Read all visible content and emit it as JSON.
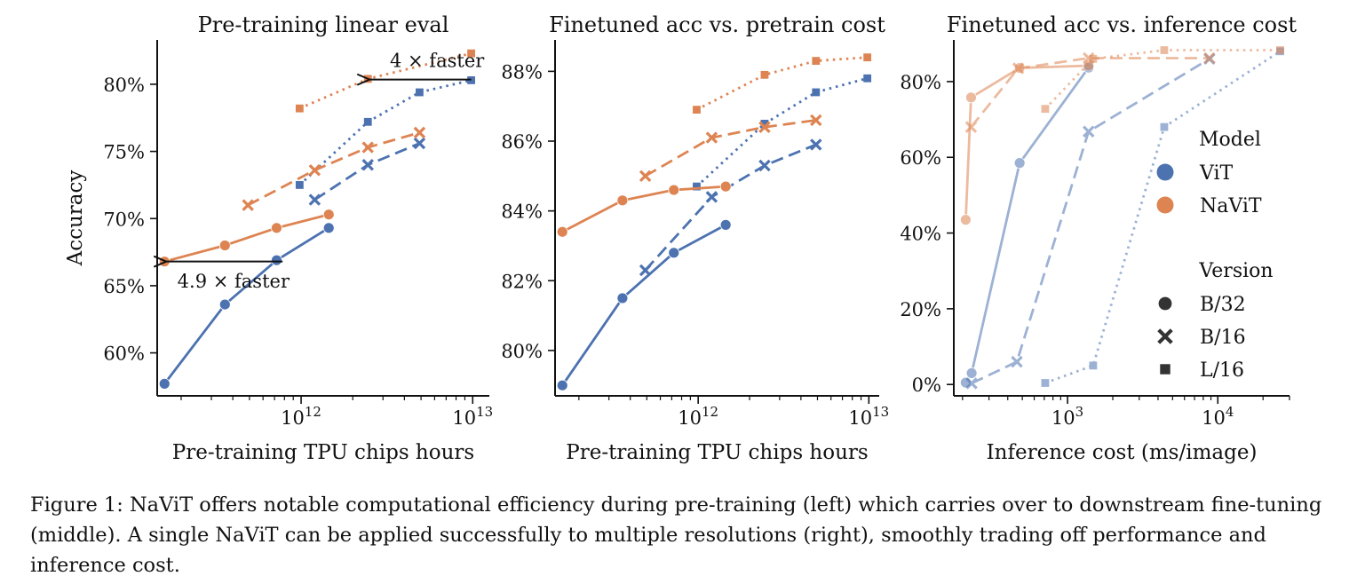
{
  "colors": {
    "vit": "#4c72b0",
    "navit": "#dd8452",
    "axis": "#111111"
  },
  "legend": {
    "model_title": "Model",
    "models": [
      {
        "label": "ViT",
        "color": "#4c72b0"
      },
      {
        "label": "NaViT",
        "color": "#dd8452"
      }
    ],
    "version_title": "Version",
    "versions": [
      {
        "label": "B/32",
        "marker": "circle"
      },
      {
        "label": "B/16",
        "marker": "x"
      },
      {
        "label": "L/16",
        "marker": "square"
      }
    ]
  },
  "caption": {
    "label": "Figure 1:",
    "text": " NaViT offers notable computational efficiency during pre-training (left) which carries over to downstream fine-tuning (middle). A single NaViT can be applied successfully to multiple resolutions (right), smoothly trading off performance and inference cost."
  },
  "chart_data": [
    {
      "type": "line",
      "title": "Pre-training linear eval",
      "xlabel": "Pre-training TPU chips hours",
      "ylabel": "Accuracy",
      "xscale": "log",
      "xlim": [
        145000000000.0,
        12500000000000.0
      ],
      "ylim": [
        56.8,
        83.3
      ],
      "xticks": [
        {
          "value": 1000000000000.0,
          "base": "10",
          "exp": "12"
        },
        {
          "value": 10000000000000.0,
          "base": "10",
          "exp": "13"
        }
      ],
      "yticks": [
        {
          "value": 60,
          "label": "60%"
        },
        {
          "value": 65,
          "label": "65%"
        },
        {
          "value": 70,
          "label": "70%"
        },
        {
          "value": 75,
          "label": "75%"
        },
        {
          "value": 80,
          "label": "80%"
        }
      ],
      "series": [
        {
          "model": "ViT",
          "version": "B/32",
          "x": [
            160000000000.0,
            360000000000.0,
            720000000000.0,
            1450000000000.0
          ],
          "y": [
            57.7,
            63.6,
            66.9,
            69.3
          ]
        },
        {
          "model": "ViT",
          "version": "B/16",
          "x": [
            1200000000000.0,
            2450000000000.0,
            4900000000000.0
          ],
          "y": [
            71.4,
            74.0,
            75.6
          ]
        },
        {
          "model": "ViT",
          "version": "L/16",
          "x": [
            980000000000.0,
            2450000000000.0,
            4900000000000.0,
            9800000000000.0
          ],
          "y": [
            72.5,
            77.2,
            79.4,
            80.3
          ]
        },
        {
          "model": "NaViT",
          "version": "B/32",
          "x": [
            160000000000.0,
            360000000000.0,
            720000000000.0,
            1450000000000.0
          ],
          "y": [
            66.8,
            68.0,
            69.3,
            70.3
          ]
        },
        {
          "model": "NaViT",
          "version": "B/16",
          "x": [
            490000000000.0,
            1200000000000.0,
            2450000000000.0,
            4900000000000.0
          ],
          "y": [
            71.0,
            73.6,
            75.3,
            76.4
          ]
        },
        {
          "model": "NaViT",
          "version": "L/16",
          "x": [
            980000000000.0,
            2450000000000.0,
            9800000000000.0
          ],
          "y": [
            78.2,
            80.4,
            82.3
          ]
        }
      ],
      "annotations": [
        {
          "text": "4 × faster",
          "from": [
            9800000000000.0,
            80.35
          ],
          "to": [
            2450000000000.0,
            80.35
          ],
          "text_anchor": [
            6200000000000.0,
            81.8
          ],
          "align": "middle"
        },
        {
          "text": "4.9 × faster",
          "from": [
            780000000000.0,
            66.8
          ],
          "to": [
            160000000000.0,
            66.8
          ],
          "text_anchor": [
            190000000000.0,
            65.4
          ],
          "align": "start"
        }
      ]
    },
    {
      "type": "line",
      "title": "Finetuned acc vs. pretrain cost",
      "xlabel": "Pre-training TPU chips hours",
      "ylabel": "",
      "xscale": "log",
      "xlim": [
        145000000000.0,
        11500000000000.0
      ],
      "ylim": [
        78.7,
        88.9
      ],
      "xticks": [
        {
          "value": 1000000000000.0,
          "base": "10",
          "exp": "12"
        },
        {
          "value": 10000000000000.0,
          "base": "10",
          "exp": "13"
        }
      ],
      "yticks": [
        {
          "value": 80,
          "label": "80%"
        },
        {
          "value": 82,
          "label": "82%"
        },
        {
          "value": 84,
          "label": "84%"
        },
        {
          "value": 86,
          "label": "86%"
        },
        {
          "value": 88,
          "label": "88%"
        }
      ],
      "series": [
        {
          "model": "ViT",
          "version": "B/32",
          "x": [
            160000000000.0,
            360000000000.0,
            720000000000.0,
            1450000000000.0
          ],
          "y": [
            79.0,
            81.5,
            82.8,
            83.6
          ]
        },
        {
          "model": "ViT",
          "version": "B/16",
          "x": [
            490000000000.0,
            1200000000000.0,
            2450000000000.0,
            4900000000000.0
          ],
          "y": [
            82.3,
            84.4,
            85.3,
            85.9
          ]
        },
        {
          "model": "ViT",
          "version": "L/16",
          "x": [
            980000000000.0,
            2450000000000.0,
            4900000000000.0,
            9800000000000.0
          ],
          "y": [
            84.7,
            86.5,
            87.4,
            87.8
          ]
        },
        {
          "model": "NaViT",
          "version": "B/32",
          "x": [
            160000000000.0,
            360000000000.0,
            720000000000.0,
            1450000000000.0
          ],
          "y": [
            83.4,
            84.3,
            84.6,
            84.7
          ]
        },
        {
          "model": "NaViT",
          "version": "B/16",
          "x": [
            490000000000.0,
            1200000000000.0,
            2450000000000.0,
            4900000000000.0
          ],
          "y": [
            85.0,
            86.1,
            86.4,
            86.6
          ]
        },
        {
          "model": "NaViT",
          "version": "L/16",
          "x": [
            980000000000.0,
            2450000000000.0,
            4900000000000.0,
            9800000000000.0
          ],
          "y": [
            86.9,
            87.9,
            88.3,
            88.4
          ]
        }
      ],
      "annotations": []
    },
    {
      "type": "line",
      "title": "Finetuned acc vs. inference cost",
      "xlabel": "Inference cost (ms/image)",
      "ylabel": "",
      "xscale": "log",
      "xlim": [
        175,
        30000
      ],
      "ylim": [
        -3,
        91
      ],
      "xticks": [
        {
          "value": 1000,
          "base": "10",
          "exp": "3"
        },
        {
          "value": 10000,
          "base": "10",
          "exp": "4"
        }
      ],
      "yticks": [
        {
          "value": 0,
          "label": "0%"
        },
        {
          "value": 20,
          "label": "20%"
        },
        {
          "value": 40,
          "label": "40%"
        },
        {
          "value": 60,
          "label": "60%"
        },
        {
          "value": 80,
          "label": "80%"
        }
      ],
      "series": [
        {
          "model": "ViT",
          "version": "B/32",
          "x": [
            210,
            230,
            480,
            1380
          ],
          "y": [
            0.5,
            3.0,
            58.5,
            83.7
          ],
          "faded": true
        },
        {
          "model": "ViT",
          "version": "B/16",
          "x": [
            230,
            460,
            1380,
            8800
          ],
          "y": [
            0.3,
            6.0,
            66.8,
            86.0
          ],
          "faded": true
        },
        {
          "model": "ViT",
          "version": "L/16",
          "x": [
            710,
            1480,
            4400,
            26000
          ],
          "y": [
            0.4,
            5.0,
            68.0,
            88.0
          ],
          "faded": true
        },
        {
          "model": "NaViT",
          "version": "B/32",
          "x": [
            210,
            228,
            480,
            1380
          ],
          "y": [
            43.5,
            75.8,
            83.6,
            84.2
          ],
          "faded": true
        },
        {
          "model": "NaViT",
          "version": "B/16",
          "x": [
            228,
            470,
            1380,
            8800
          ],
          "y": [
            68.0,
            83.5,
            86.2,
            86.2
          ],
          "faded": true
        },
        {
          "model": "NaViT",
          "version": "L/16",
          "x": [
            710,
            1480,
            4400,
            26000
          ],
          "y": [
            72.8,
            86.0,
            88.3,
            88.3
          ],
          "faded": true
        }
      ],
      "annotations": []
    }
  ]
}
